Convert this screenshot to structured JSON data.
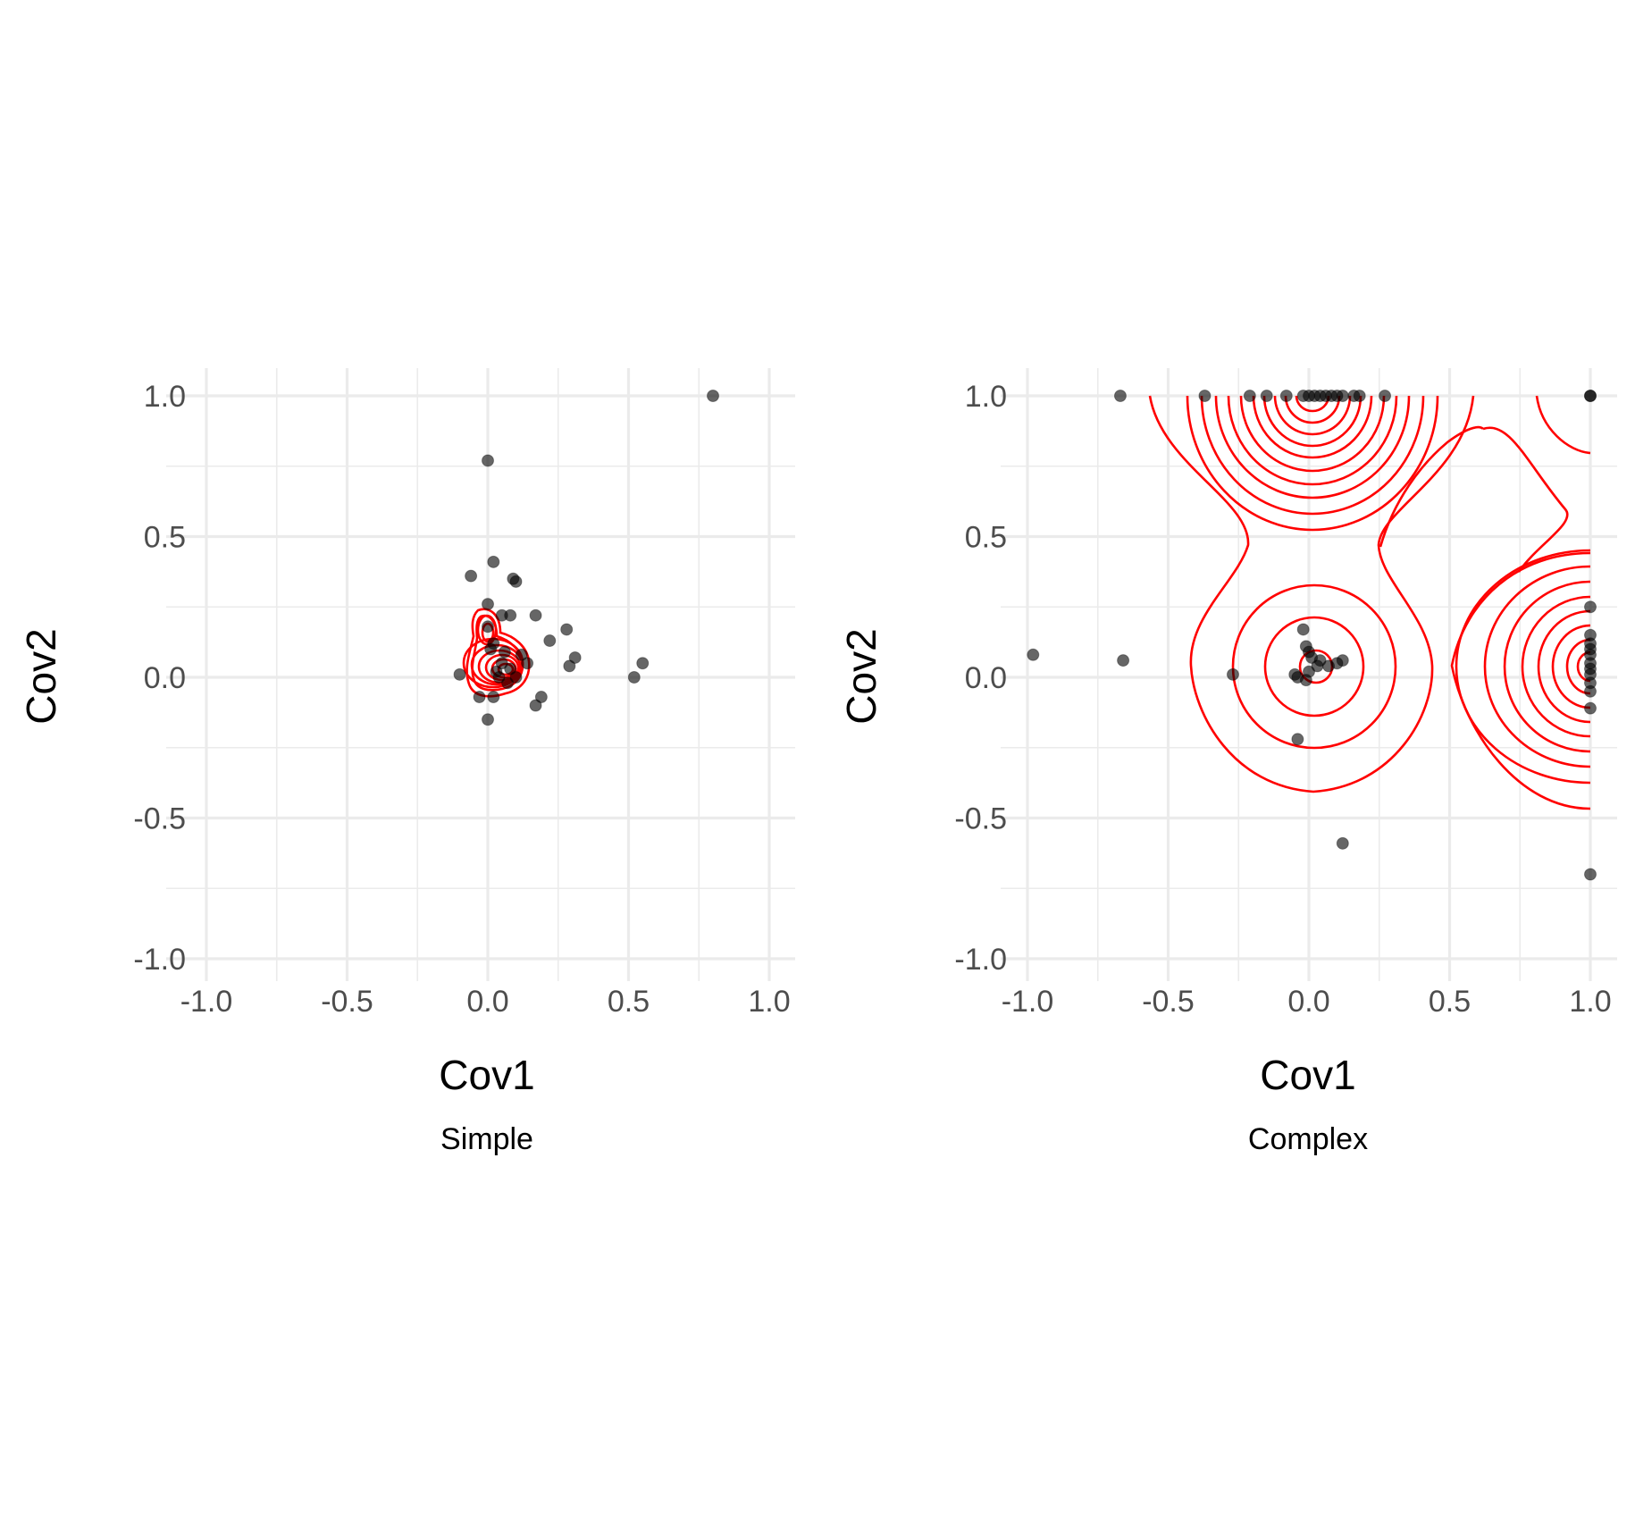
{
  "colors": {
    "contour": "#ff0000",
    "point": "#000000",
    "grid": "#ebebeb",
    "tick_text": "#4d4d4d"
  },
  "chart_data": [
    {
      "type": "scatter",
      "subtitle": "Simple",
      "xlabel": "Cov1",
      "ylabel": "Cov2",
      "xlim": [
        -1,
        1
      ],
      "ylim": [
        -1,
        1
      ],
      "xticks": [
        "-1.0",
        "-0.5",
        "0.0",
        "0.5",
        "1.0"
      ],
      "yticks": [
        "1.0",
        "0.5",
        "0.0",
        "-0.5",
        "-1.0"
      ],
      "grid": true,
      "overlay": "2D density contours (red)",
      "contour_centers": [
        [
          0.04,
          0.04
        ],
        [
          0.0,
          0.14
        ]
      ],
      "points": [
        [
          0.8,
          1.0
        ],
        [
          0.0,
          0.77
        ],
        [
          0.02,
          0.41
        ],
        [
          -0.06,
          0.36
        ],
        [
          0.09,
          0.35
        ],
        [
          0.1,
          0.34
        ],
        [
          0.0,
          0.26
        ],
        [
          0.05,
          0.22
        ],
        [
          0.08,
          0.22
        ],
        [
          0.17,
          0.22
        ],
        [
          0.28,
          0.17
        ],
        [
          0.22,
          0.13
        ],
        [
          0.31,
          0.07
        ],
        [
          0.29,
          0.04
        ],
        [
          0.55,
          0.05
        ],
        [
          0.52,
          0.0
        ],
        [
          0.14,
          0.05
        ],
        [
          0.12,
          0.08
        ],
        [
          0.1,
          0.0
        ],
        [
          0.05,
          0.05
        ],
        [
          0.02,
          0.12
        ],
        [
          0.0,
          0.18
        ],
        [
          0.01,
          0.1
        ],
        [
          0.03,
          0.02
        ],
        [
          0.06,
          0.09
        ],
        [
          0.08,
          0.03
        ],
        [
          -0.1,
          0.01
        ],
        [
          -0.03,
          -0.07
        ],
        [
          0.02,
          -0.07
        ],
        [
          0.19,
          -0.07
        ],
        [
          0.17,
          -0.1
        ],
        [
          0.0,
          -0.15
        ],
        [
          0.04,
          0.0
        ],
        [
          0.07,
          -0.02
        ]
      ]
    },
    {
      "type": "scatter",
      "subtitle": "Complex",
      "xlabel": "Cov1",
      "ylabel": "Cov2",
      "xlim": [
        -1,
        1
      ],
      "ylim": [
        -1,
        1
      ],
      "xticks": [
        "-1.0",
        "-0.5",
        "0.0",
        "0.5",
        "1.0"
      ],
      "yticks": [
        "1.0",
        "0.5",
        "0.0",
        "-0.5",
        "-1.0"
      ],
      "grid": true,
      "overlay": "2D density contours (red)",
      "contour_centers": [
        [
          0.02,
          1.0
        ],
        [
          0.02,
          0.05
        ],
        [
          1.0,
          0.05
        ],
        [
          1.0,
          1.0
        ]
      ],
      "points": [
        [
          -0.67,
          1.0
        ],
        [
          -0.37,
          1.0
        ],
        [
          -0.21,
          1.0
        ],
        [
          -0.15,
          1.0
        ],
        [
          -0.08,
          1.0
        ],
        [
          -0.02,
          1.0
        ],
        [
          0.0,
          1.0
        ],
        [
          0.02,
          1.0
        ],
        [
          0.04,
          1.0
        ],
        [
          0.06,
          1.0
        ],
        [
          0.08,
          1.0
        ],
        [
          0.1,
          1.0
        ],
        [
          0.12,
          1.0
        ],
        [
          0.16,
          1.0
        ],
        [
          0.18,
          1.0
        ],
        [
          0.27,
          1.0
        ],
        [
          1.0,
          1.0
        ],
        [
          1.0,
          1.0
        ],
        [
          -0.98,
          0.08
        ],
        [
          -0.66,
          0.06
        ],
        [
          -0.27,
          0.01
        ],
        [
          -0.02,
          0.17
        ],
        [
          -0.01,
          0.11
        ],
        [
          0.0,
          0.09
        ],
        [
          0.01,
          0.07
        ],
        [
          0.04,
          0.06
        ],
        [
          0.03,
          0.04
        ],
        [
          0.07,
          0.04
        ],
        [
          0.1,
          0.05
        ],
        [
          0.12,
          0.06
        ],
        [
          -0.04,
          0.0
        ],
        [
          -0.01,
          -0.01
        ],
        [
          -0.05,
          0.01
        ],
        [
          -0.04,
          -0.22
        ],
        [
          0.12,
          -0.59
        ],
        [
          0.0,
          0.02
        ],
        [
          1.0,
          0.25
        ],
        [
          1.0,
          0.15
        ],
        [
          1.0,
          0.12
        ],
        [
          1.0,
          0.1
        ],
        [
          1.0,
          0.08
        ],
        [
          1.0,
          0.05
        ],
        [
          1.0,
          0.03
        ],
        [
          1.0,
          0.01
        ],
        [
          1.0,
          -0.02
        ],
        [
          1.0,
          -0.05
        ],
        [
          1.0,
          -0.11
        ],
        [
          1.0,
          -0.7
        ]
      ]
    }
  ]
}
